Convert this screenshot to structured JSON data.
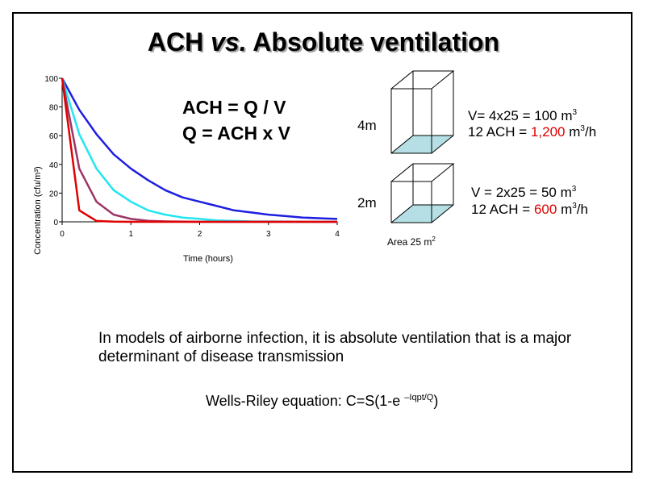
{
  "slide": {
    "title_part1": "ACH ",
    "title_part2": "vs.",
    "title_part3": " Absolute ventilation",
    "formula_line1": "ACH = Q / V",
    "formula_line2": "Q = ACH x V",
    "room_tall": {
      "height_label": "4m",
      "volume_line_prefix": "V= 4x25 = 100 m",
      "volume_sup": "3",
      "ach_prefix": "12 ACH = ",
      "ach_value": "1,200",
      "ach_unit": " m",
      "ach_sup": "3",
      "ach_suffix": "/h"
    },
    "room_short": {
      "height_label": "2m",
      "volume_line_prefix": "V = 2x25 = 50 m",
      "volume_sup": "3",
      "ach_prefix": "12 ACH = ",
      "ach_value": "600",
      "ach_unit": " m",
      "ach_sup": "3",
      "ach_suffix": "/h"
    },
    "area_label": "Area 25 m",
    "area_sup": "2",
    "body_text": "In models of airborne infection, it is absolute ventilation that is a major determinant of disease transmission",
    "wells_prefix": "Wells-Riley equation: C=S(1-e ",
    "wells_sup": "–Iqpt/Q",
    "wells_suffix": ")",
    "colors": {
      "highlight": "#e00000",
      "floor": "#b5dfe4"
    }
  },
  "chart_data": {
    "type": "line",
    "xlabel": "Time (hours)",
    "ylabel": "Concentration (cfu/m³)",
    "xlim": [
      0,
      4
    ],
    "ylim": [
      0,
      100
    ],
    "x_ticks": [
      "0",
      "1",
      "2",
      "3",
      "4"
    ],
    "y_ticks": [
      "0",
      "20",
      "40",
      "60",
      "80",
      "100"
    ],
    "x": [
      0,
      0.25,
      0.5,
      0.75,
      1,
      1.25,
      1.5,
      1.75,
      2,
      2.25,
      2.5,
      2.75,
      3,
      3.25,
      3.5,
      3.75,
      4
    ],
    "series": [
      {
        "color": "#1e1ee0",
        "values": [
          100,
          78,
          61,
          47,
          37,
          29,
          22,
          17,
          14,
          11,
          8,
          6.5,
          5,
          4,
          3,
          2.5,
          2
        ]
      },
      {
        "color": "#22e6ef",
        "values": [
          100,
          61,
          37,
          22,
          14,
          8,
          5,
          3,
          2,
          1,
          0.6,
          0.3,
          0.2,
          0.1,
          0,
          0,
          0
        ]
      },
      {
        "color": "#9b3565",
        "values": [
          100,
          37,
          14,
          5,
          2,
          0.7,
          0.3,
          0.1,
          0,
          0,
          0,
          0,
          0,
          0,
          0,
          0,
          0
        ]
      },
      {
        "color": "#e00000",
        "values": [
          100,
          8,
          0.6,
          0.1,
          0,
          0,
          0,
          0,
          0,
          0,
          0,
          0,
          0,
          0,
          0,
          0,
          0
        ]
      }
    ]
  }
}
